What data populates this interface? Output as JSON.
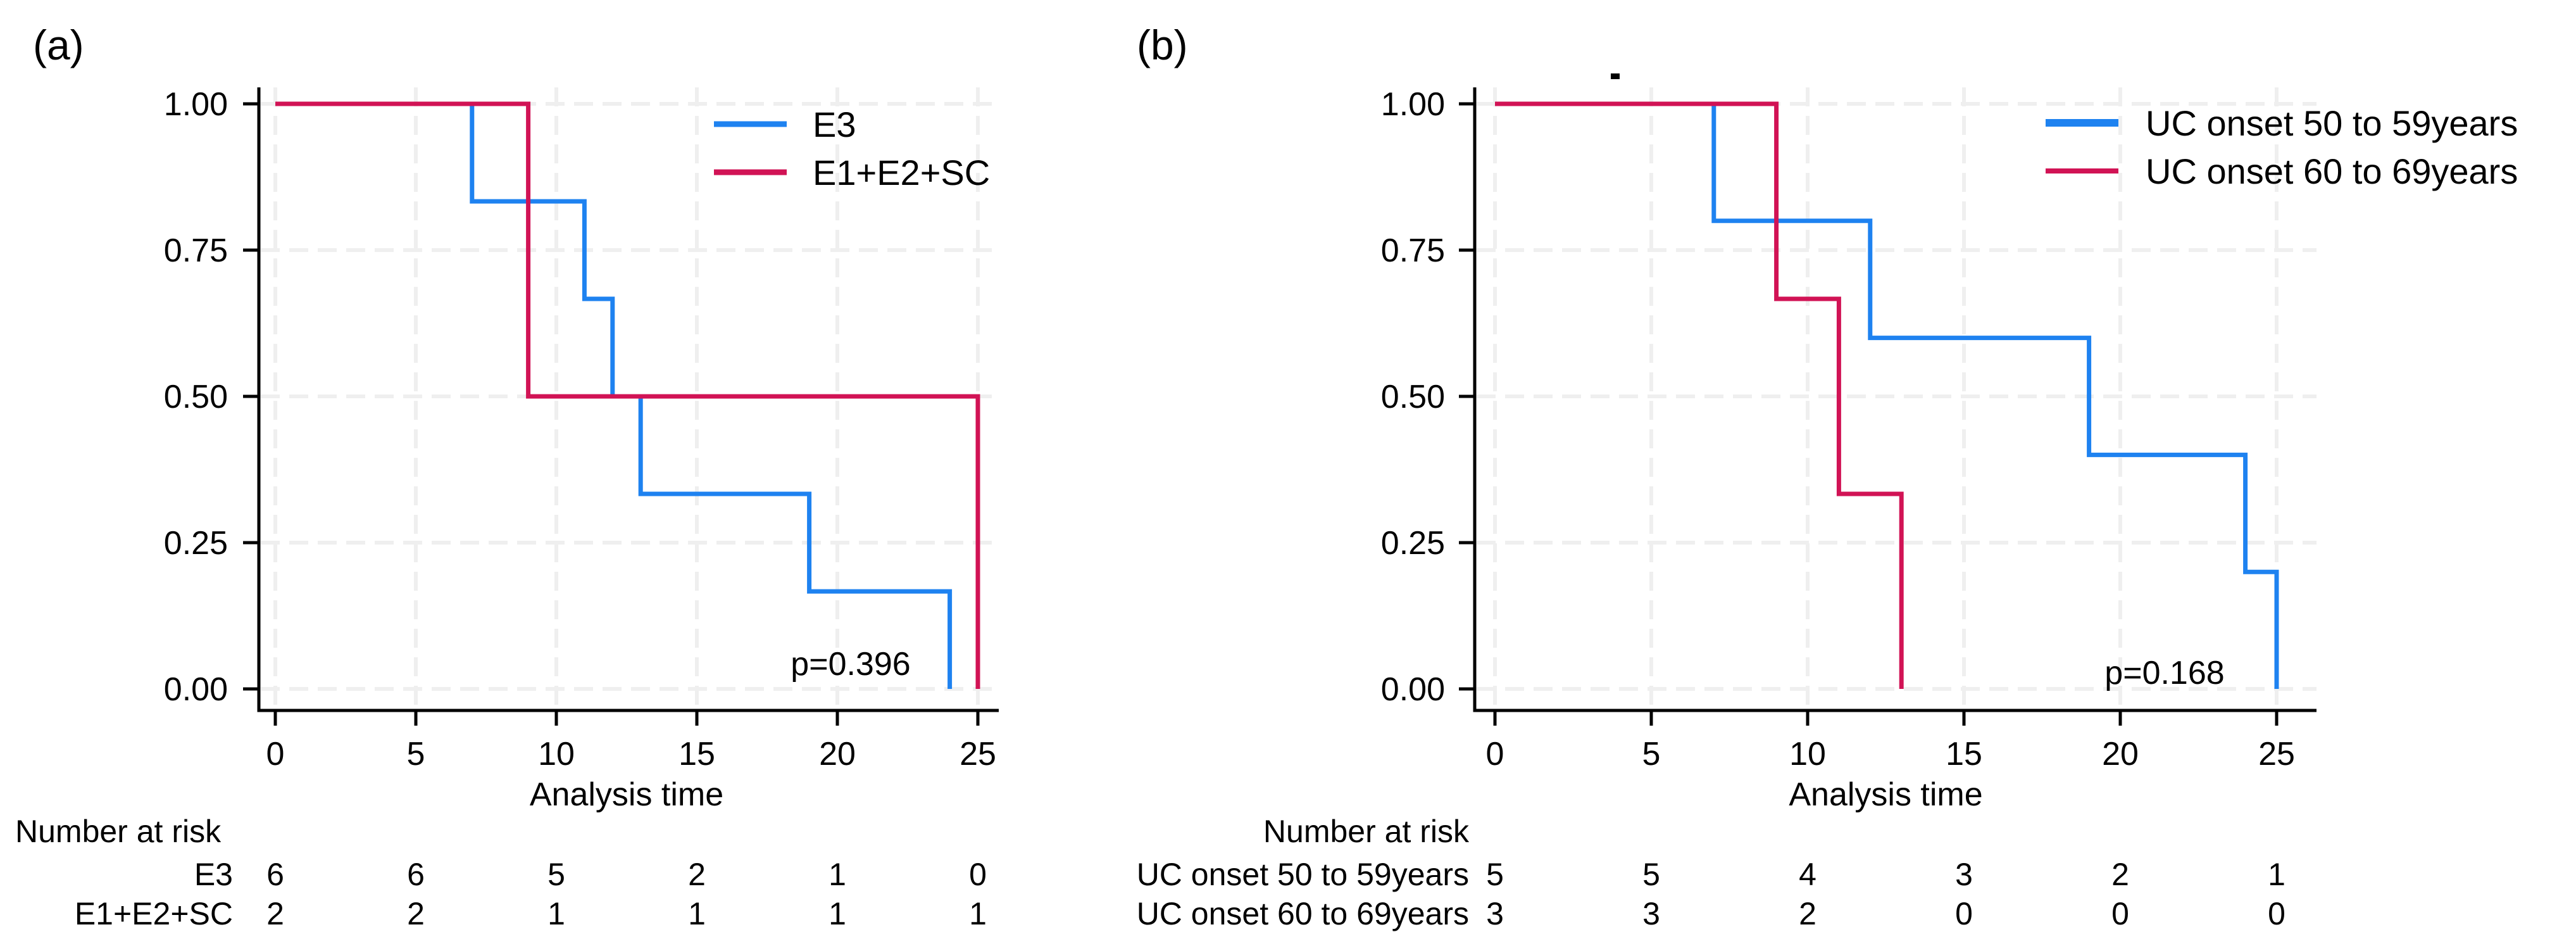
{
  "figure_background": "#FFFFFF",
  "colors": {
    "blue_series": "#1E82F0",
    "crimson_series": "#D11355",
    "gridline": "#EFEFEF",
    "axis": "#000000",
    "text": "#000000"
  },
  "chart_data": [
    {
      "type": "line",
      "subtype": "kaplan_meier_step",
      "panel_label": "(a)",
      "xlabel": "Analysis time",
      "ylabel": "",
      "xlim": [
        0,
        25
      ],
      "ylim": [
        0,
        1
      ],
      "grid": "dashed",
      "legend_position": "top-right",
      "xticks": [
        0,
        5,
        10,
        15,
        20,
        25
      ],
      "yticks": [
        {
          "label": "1.00",
          "value": 1.0
        },
        {
          "label": "0.75",
          "value": 0.75
        },
        {
          "label": "0.50",
          "value": 0.5
        },
        {
          "label": "0.25",
          "value": 0.25
        },
        {
          "label": "0.00",
          "value": 0.0
        }
      ],
      "p_value_label": "p=0.396",
      "series": [
        {
          "name": "E3",
          "color": "#1E82F0",
          "steps": [
            [
              0,
              1.0
            ],
            [
              7,
              0.8333
            ],
            [
              11,
              0.6667
            ],
            [
              12,
              0.5
            ],
            [
              13,
              0.3333
            ],
            [
              19,
              0.1667
            ],
            [
              24,
              0.0
            ]
          ]
        },
        {
          "name": "E1+E2+SC",
          "color": "#D11355",
          "steps": [
            [
              0,
              1.0
            ],
            [
              9,
              0.5
            ],
            [
              25,
              0.0
            ]
          ]
        }
      ],
      "number_at_risk": {
        "title": "Number at risk",
        "times": [
          0,
          5,
          10,
          15,
          20,
          25
        ],
        "rows": [
          {
            "label": "E3",
            "counts": [
              6,
              6,
              5,
              2,
              1,
              0
            ]
          },
          {
            "label": "E1+E2+SC",
            "counts": [
              2,
              2,
              1,
              1,
              1,
              1
            ]
          }
        ]
      }
    },
    {
      "type": "line",
      "subtype": "kaplan_meier_step",
      "panel_label": "(b)",
      "xlabel": "Analysis time",
      "ylabel": "",
      "xlim": [
        0,
        25
      ],
      "ylim": [
        0,
        1
      ],
      "grid": "dashed",
      "legend_position": "top-right",
      "xticks": [
        0,
        5,
        10,
        15,
        20,
        25
      ],
      "yticks": [
        {
          "label": "1.00",
          "value": 1.0
        },
        {
          "label": "0.75",
          "value": 0.75
        },
        {
          "label": "0.50",
          "value": 0.5
        },
        {
          "label": "0.25",
          "value": 0.25
        },
        {
          "label": "0.00",
          "value": 0.0
        }
      ],
      "p_value_label": "p=0.168",
      "annotation_dot": true,
      "series": [
        {
          "name": "UC onset 50 to 59years",
          "color": "#1E82F0",
          "steps": [
            [
              0,
              1.0
            ],
            [
              7,
              0.8
            ],
            [
              12,
              0.6
            ],
            [
              19,
              0.4
            ],
            [
              24,
              0.2
            ],
            [
              25,
              0.0
            ]
          ]
        },
        {
          "name": "UC onset 60 to 69years",
          "color": "#D11355",
          "steps": [
            [
              0,
              1.0
            ],
            [
              9,
              0.6667
            ],
            [
              11,
              0.3333
            ],
            [
              13,
              0.0
            ]
          ]
        }
      ],
      "number_at_risk": {
        "title": "Number at risk",
        "times": [
          0,
          5,
          10,
          15,
          20,
          25
        ],
        "rows": [
          {
            "label": "UC onset 50 to 59years",
            "counts": [
              5,
              5,
              4,
              3,
              2,
              1
            ]
          },
          {
            "label": "UC onset 60 to 69years",
            "counts": [
              3,
              3,
              2,
              0,
              0,
              0
            ]
          }
        ]
      }
    }
  ]
}
